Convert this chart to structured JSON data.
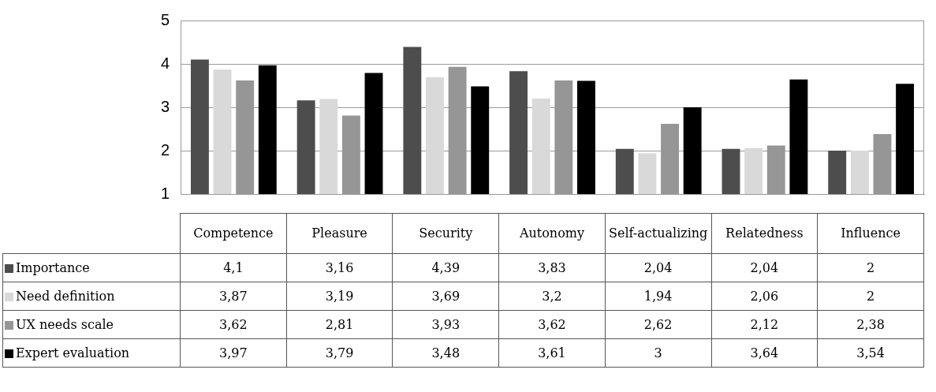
{
  "chart_data": {
    "type": "bar",
    "categories": [
      "Competence",
      "Pleasure",
      "Security",
      "Autonomy",
      "Self-actualizing",
      "Relatedness",
      "Influence"
    ],
    "series": [
      {
        "name": "Importance",
        "color": "#4d4d4d",
        "values": [
          4.1,
          3.16,
          4.39,
          3.83,
          2.04,
          2.04,
          2
        ],
        "value_labels": [
          "4,1",
          "3,16",
          "4,39",
          "3,83",
          "2,04",
          "2,04",
          "2"
        ]
      },
      {
        "name": "Need definition",
        "color": "#d9d9d9",
        "values": [
          3.87,
          3.19,
          3.69,
          3.2,
          1.94,
          2.06,
          2
        ],
        "value_labels": [
          "3,87",
          "3,19",
          "3,69",
          "3,2",
          "1,94",
          "2,06",
          "2"
        ]
      },
      {
        "name": "UX needs scale",
        "color": "#969696",
        "values": [
          3.62,
          2.81,
          3.93,
          3.62,
          2.62,
          2.12,
          2.38
        ],
        "value_labels": [
          "3,62",
          "2,81",
          "3,93",
          "3,62",
          "2,62",
          "2,12",
          "2,38"
        ]
      },
      {
        "name": "Expert evaluation",
        "color": "#000000",
        "values": [
          3.97,
          3.79,
          3.48,
          3.61,
          3,
          3.64,
          3.54
        ],
        "value_labels": [
          "3,97",
          "3,79",
          "3,48",
          "3,61",
          "3",
          "3,64",
          "3,54"
        ]
      }
    ],
    "ylim": [
      1,
      5
    ],
    "yticks": [
      1,
      2,
      3,
      4,
      5
    ],
    "grid": "y",
    "legend": "bottom left"
  }
}
